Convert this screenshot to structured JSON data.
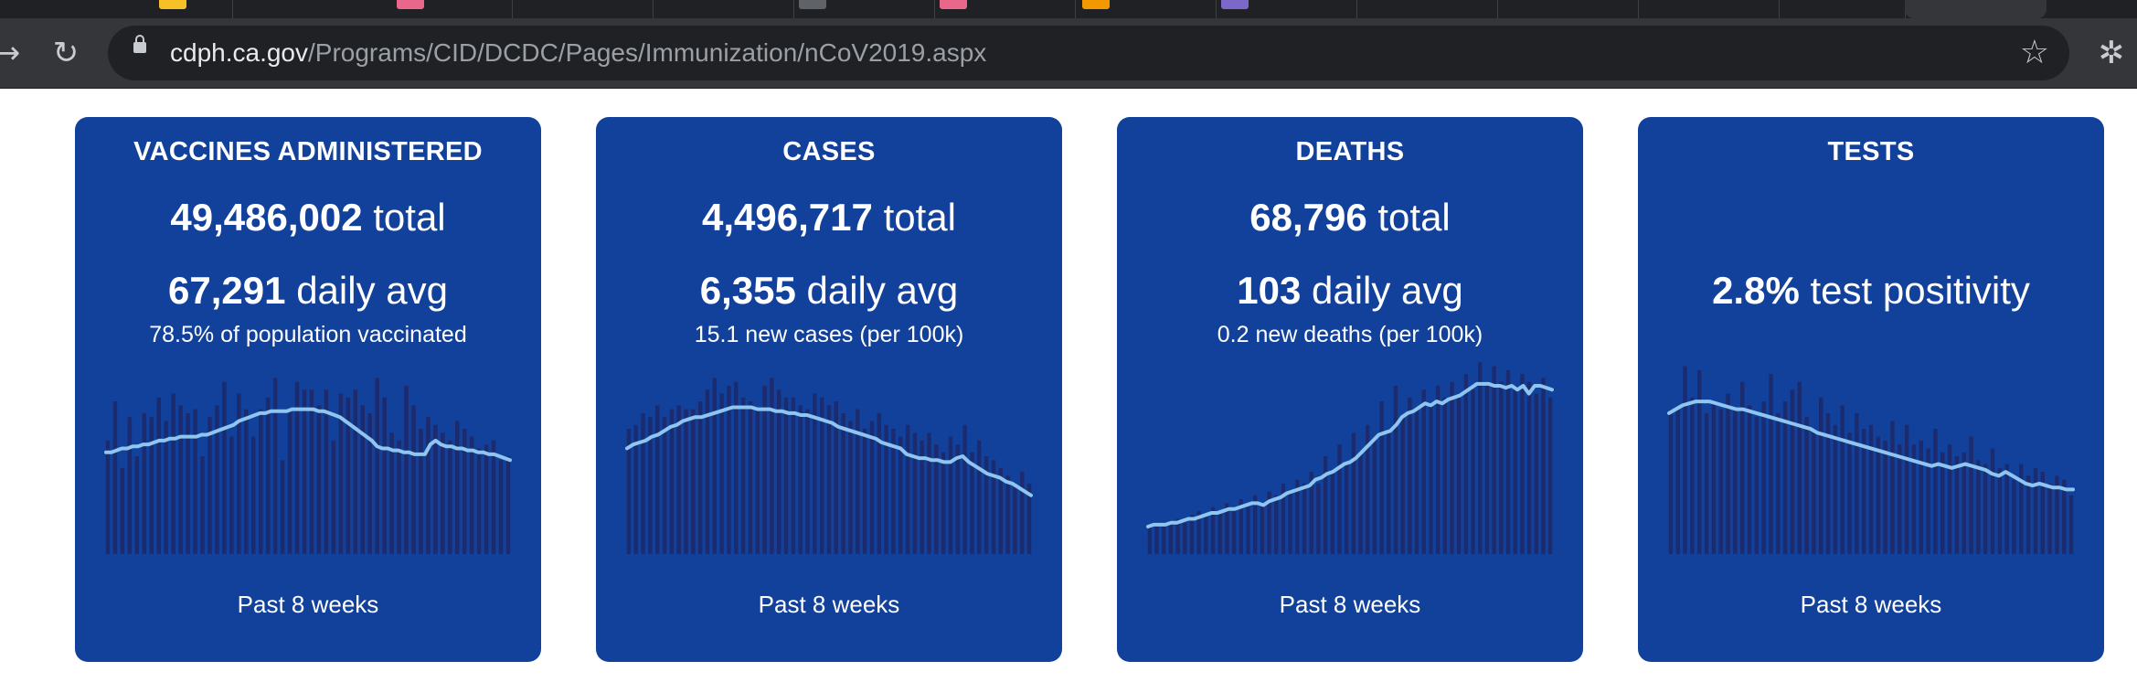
{
  "browser": {
    "url_host": "cdph.ca.gov",
    "url_path": "/Programs/CID/DCDC/Pages/Immunization/nCoV2019.aspx",
    "icons": [
      "forward-arrow-icon",
      "reload-icon",
      "lock-icon",
      "star-icon",
      "puzzle-icon"
    ],
    "glyphs": {
      "forward": "→",
      "reload": "↻",
      "star": "☆",
      "ext": "✲"
    }
  },
  "colors": {
    "card_bg": "#12419b",
    "bars": "#1c2a6e",
    "line": "#8ec6f0"
  },
  "cards": [
    {
      "title": "VACCINES ADMINISTERED",
      "total_value": "49,486,002",
      "total_unit": "total",
      "avg_value": "67,291",
      "avg_unit": "daily avg",
      "note": "78.5% of population vaccinated",
      "footer": "Past 8 weeks"
    },
    {
      "title": "CASES",
      "total_value": "4,496,717",
      "total_unit": "total",
      "avg_value": "6,355",
      "avg_unit": "daily avg",
      "note": "15.1 new cases (per 100k)",
      "footer": "Past 8 weeks"
    },
    {
      "title": "DEATHS",
      "total_value": "68,796",
      "total_unit": "total",
      "avg_value": "103",
      "avg_unit": "daily avg",
      "note": "0.2 new deaths (per 100k)",
      "footer": "Past 8 weeks"
    },
    {
      "title": "TESTS",
      "total_value": "",
      "total_unit": "",
      "avg_value": "2.8%",
      "avg_unit": "test positivity",
      "note": "",
      "footer": "Past 8 weeks"
    }
  ],
  "chart_data": [
    {
      "type": "bar",
      "bars": [
        0.58,
        0.78,
        0.44,
        0.7,
        0.5,
        0.72,
        0.7,
        0.8,
        0.68,
        0.82,
        0.76,
        0.72,
        0.74,
        0.5,
        0.7,
        0.76,
        0.88,
        0.6,
        0.82,
        0.74,
        0.6,
        0.74,
        0.8,
        0.9,
        0.48,
        0.74,
        0.88,
        0.84,
        0.84,
        0.76,
        0.84,
        0.58,
        0.82,
        0.8,
        0.84,
        0.76,
        0.72,
        0.9,
        0.8,
        0.62,
        0.58,
        0.86,
        0.76,
        0.64,
        0.7,
        0.66,
        0.62,
        0.58,
        0.68,
        0.64,
        0.6,
        0.54,
        0.56,
        0.58,
        0.48,
        0.5
      ],
      "line": [
        0.52,
        0.52,
        0.53,
        0.54,
        0.54,
        0.55,
        0.55,
        0.56,
        0.56,
        0.57,
        0.58,
        0.58,
        0.59,
        0.59,
        0.6,
        0.6,
        0.6,
        0.6,
        0.61,
        0.61,
        0.62,
        0.63,
        0.64,
        0.65,
        0.66,
        0.68,
        0.69,
        0.7,
        0.71,
        0.72,
        0.72,
        0.73,
        0.73,
        0.73,
        0.73,
        0.74,
        0.74,
        0.74,
        0.74,
        0.74,
        0.73,
        0.73,
        0.72,
        0.71,
        0.7,
        0.68,
        0.66,
        0.64,
        0.62,
        0.6,
        0.58,
        0.55,
        0.54,
        0.54,
        0.53,
        0.53,
        0.52,
        0.52,
        0.51,
        0.51,
        0.51,
        0.56,
        0.58,
        0.56,
        0.55,
        0.55,
        0.54,
        0.54,
        0.53,
        0.53,
        0.52,
        0.52,
        0.51,
        0.51,
        0.5,
        0.49,
        0.48
      ]
    },
    {
      "type": "bar",
      "bars": [
        0.64,
        0.66,
        0.72,
        0.7,
        0.76,
        0.7,
        0.74,
        0.76,
        0.74,
        0.74,
        0.78,
        0.84,
        0.9,
        0.82,
        0.86,
        0.88,
        0.8,
        0.78,
        0.74,
        0.86,
        0.9,
        0.84,
        0.8,
        0.8,
        0.76,
        0.74,
        0.82,
        0.8,
        0.76,
        0.78,
        0.72,
        0.68,
        0.74,
        0.64,
        0.68,
        0.72,
        0.66,
        0.64,
        0.6,
        0.66,
        0.62,
        0.58,
        0.62,
        0.56,
        0.52,
        0.6,
        0.56,
        0.66,
        0.52,
        0.58,
        0.5,
        0.48,
        0.44,
        0.4,
        0.34,
        0.42,
        0.36
      ],
      "line": [
        0.54,
        0.56,
        0.57,
        0.58,
        0.6,
        0.61,
        0.63,
        0.65,
        0.66,
        0.68,
        0.69,
        0.7,
        0.7,
        0.71,
        0.72,
        0.73,
        0.74,
        0.75,
        0.75,
        0.75,
        0.75,
        0.74,
        0.74,
        0.74,
        0.73,
        0.73,
        0.72,
        0.72,
        0.71,
        0.71,
        0.7,
        0.69,
        0.68,
        0.67,
        0.65,
        0.64,
        0.63,
        0.62,
        0.61,
        0.6,
        0.59,
        0.57,
        0.56,
        0.55,
        0.54,
        0.51,
        0.5,
        0.49,
        0.49,
        0.48,
        0.48,
        0.47,
        0.47,
        0.49,
        0.5,
        0.47,
        0.45,
        0.43,
        0.41,
        0.4,
        0.39,
        0.37,
        0.36,
        0.34,
        0.32,
        0.3
      ]
    },
    {
      "type": "bar",
      "bars": [
        0.14,
        0.16,
        0.15,
        0.17,
        0.18,
        0.16,
        0.2,
        0.22,
        0.2,
        0.24,
        0.22,
        0.26,
        0.22,
        0.28,
        0.24,
        0.3,
        0.26,
        0.32,
        0.3,
        0.36,
        0.32,
        0.38,
        0.36,
        0.42,
        0.36,
        0.5,
        0.42,
        0.56,
        0.46,
        0.62,
        0.52,
        0.66,
        0.58,
        0.78,
        0.64,
        0.86,
        0.7,
        0.8,
        0.74,
        0.84,
        0.76,
        0.86,
        0.8,
        0.88,
        0.8,
        0.92,
        0.84,
        0.98,
        0.86,
        0.96,
        0.88,
        0.94,
        0.86,
        0.92,
        0.88,
        0.82,
        0.9,
        0.8
      ],
      "line": [
        0.14,
        0.15,
        0.15,
        0.15,
        0.16,
        0.16,
        0.17,
        0.18,
        0.18,
        0.19,
        0.2,
        0.21,
        0.21,
        0.22,
        0.23,
        0.23,
        0.24,
        0.25,
        0.26,
        0.26,
        0.25,
        0.27,
        0.28,
        0.29,
        0.31,
        0.32,
        0.33,
        0.34,
        0.35,
        0.38,
        0.39,
        0.41,
        0.42,
        0.44,
        0.46,
        0.47,
        0.49,
        0.52,
        0.55,
        0.58,
        0.61,
        0.62,
        0.63,
        0.66,
        0.7,
        0.72,
        0.73,
        0.75,
        0.77,
        0.76,
        0.78,
        0.77,
        0.79,
        0.8,
        0.81,
        0.83,
        0.85,
        0.87,
        0.87,
        0.87,
        0.86,
        0.86,
        0.85,
        0.86,
        0.84,
        0.86,
        0.82,
        0.86,
        0.86,
        0.85,
        0.84
      ]
    },
    {
      "type": "bar",
      "bars": [
        0.72,
        0.74,
        0.96,
        0.8,
        0.94,
        0.72,
        0.78,
        0.74,
        0.82,
        0.74,
        0.88,
        0.76,
        0.7,
        0.78,
        0.92,
        0.72,
        0.78,
        0.84,
        0.88,
        0.7,
        0.64,
        0.8,
        0.72,
        0.66,
        0.76,
        0.62,
        0.72,
        0.64,
        0.66,
        0.6,
        0.58,
        0.68,
        0.56,
        0.66,
        0.56,
        0.58,
        0.54,
        0.64,
        0.52,
        0.56,
        0.5,
        0.52,
        0.6,
        0.48,
        0.46,
        0.54,
        0.44,
        0.46,
        0.38,
        0.46,
        0.4,
        0.44,
        0.42,
        0.36,
        0.4,
        0.38,
        0.3
      ],
      "line": [
        0.72,
        0.74,
        0.76,
        0.77,
        0.78,
        0.78,
        0.78,
        0.77,
        0.76,
        0.75,
        0.74,
        0.74,
        0.73,
        0.72,
        0.71,
        0.7,
        0.69,
        0.68,
        0.67,
        0.66,
        0.65,
        0.64,
        0.62,
        0.61,
        0.6,
        0.59,
        0.58,
        0.57,
        0.56,
        0.55,
        0.54,
        0.53,
        0.52,
        0.51,
        0.5,
        0.49,
        0.48,
        0.47,
        0.46,
        0.45,
        0.46,
        0.45,
        0.44,
        0.45,
        0.46,
        0.45,
        0.44,
        0.43,
        0.41,
        0.4,
        0.42,
        0.4,
        0.38,
        0.36,
        0.35,
        0.36,
        0.35,
        0.34,
        0.34,
        0.33,
        0.33
      ]
    }
  ]
}
